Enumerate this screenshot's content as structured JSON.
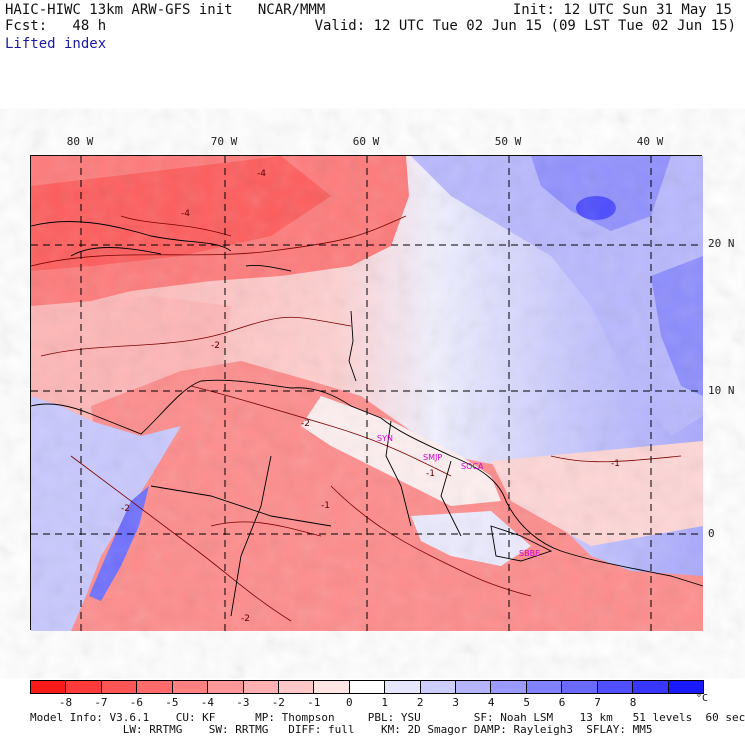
{
  "header": {
    "line1_left": "HAIC-HIWC 13km ARW-GFS init   NCAR/MMM",
    "line2_left": "Fcst:   48 h",
    "line3_left": "Lifted index",
    "line1_right": "Init: 12 UTC Sun 31 May 15",
    "line2_right": "Valid: 12 UTC Tue 02 Jun 15 (09 LST Tue 02 Jun 15)"
  },
  "axes": {
    "lon_labels": [
      "80 W",
      "70 W",
      "60 W",
      "50 W",
      "40 W"
    ],
    "lat_labels": [
      "20 N",
      "10 N",
      "0"
    ]
  },
  "stations": [
    "SYN",
    "SMJP",
    "SOCA",
    "SBBE"
  ],
  "contour_labels": [
    "-4",
    "-2",
    "-2",
    "-2",
    "-1",
    "-2",
    "-1",
    "-1",
    "-4"
  ],
  "colorbar": {
    "colors": [
      "#ff1a1a",
      "#ff3a3a",
      "#ff5555",
      "#ff6a6a",
      "#ff8080",
      "#ff9898",
      "#ffb0b0",
      "#ffc8c8",
      "#ffe4e4",
      "#ffffff",
      "#e6e6ff",
      "#cdcdff",
      "#b4b4ff",
      "#9b9bff",
      "#8282ff",
      "#6a6aff",
      "#5050ff",
      "#3737ff",
      "#1a1aff"
    ],
    "labels": [
      "-8",
      "-7",
      "-6",
      "-5",
      "-4",
      "-3",
      "-2",
      "-1",
      "0",
      "1",
      "2",
      "3",
      "4",
      "5",
      "6",
      "7",
      "8"
    ],
    "unit": "°C"
  },
  "footer": {
    "line1": "Model Info: V3.6.1    CU: KF      MP: Thompson     PBL: YSU        SF: Noah LSM    13 km   51 levels  60 sec",
    "line2": "              LW: RRTMG    SW: RRTMG   DIFF: full    KM: 2D Smagor DAMP: Rayleigh3  SFLAY: MM5"
  }
}
